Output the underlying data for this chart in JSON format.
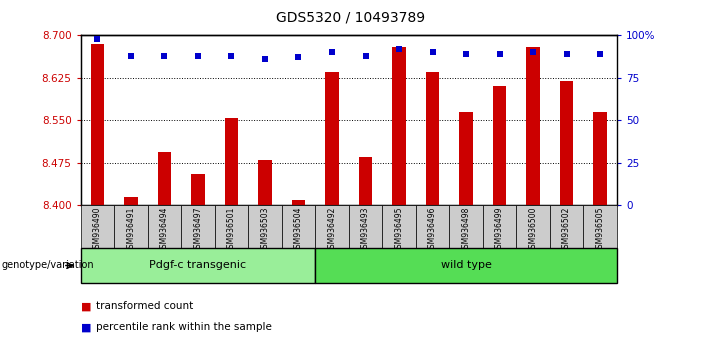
{
  "title": "GDS5320 / 10493789",
  "samples": [
    "GSM936490",
    "GSM936491",
    "GSM936494",
    "GSM936497",
    "GSM936501",
    "GSM936503",
    "GSM936504",
    "GSM936492",
    "GSM936493",
    "GSM936495",
    "GSM936496",
    "GSM936498",
    "GSM936499",
    "GSM936500",
    "GSM936502",
    "GSM936505"
  ],
  "bar_values": [
    8.685,
    8.415,
    8.495,
    8.455,
    8.555,
    8.48,
    8.41,
    8.635,
    8.485,
    8.68,
    8.635,
    8.565,
    8.61,
    8.68,
    8.62,
    8.565
  ],
  "percentile_values": [
    98,
    88,
    88,
    88,
    88,
    86,
    87,
    90,
    88,
    92,
    90,
    89,
    89,
    90,
    89,
    89
  ],
  "ymin": 8.4,
  "ymax": 8.7,
  "yticks": [
    8.4,
    8.475,
    8.55,
    8.625,
    8.7
  ],
  "right_yticks": [
    0,
    25,
    50,
    75,
    100
  ],
  "bar_color": "#cc0000",
  "dot_color": "#0000cc",
  "group1_label": "Pdgf-c transgenic",
  "group1_count": 7,
  "group2_label": "wild type",
  "group2_count": 9,
  "group1_color": "#99ee99",
  "group2_color": "#55dd55",
  "legend1": "transformed count",
  "legend2": "percentile rank within the sample",
  "genotype_label": "genotype/variation",
  "xlabel_color": "#cc0000",
  "right_axis_color": "#0000cc",
  "tick_area_color": "#cccccc"
}
